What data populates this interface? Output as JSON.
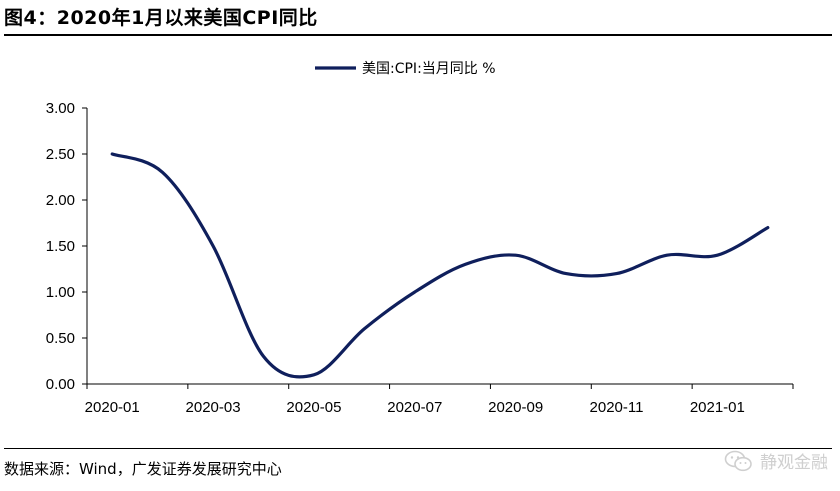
{
  "figure": {
    "title": "图4：2020年1月以来美国CPI同比",
    "source": "数据来源：Wind，广发证券发展研究中心",
    "watermark": "静观金融",
    "watermark_icon": "wechat-icon"
  },
  "chart_data": {
    "type": "line",
    "title": "",
    "xlabel": "",
    "ylabel": "",
    "ylim": [
      0,
      3
    ],
    "y_ticks": [
      "0.00",
      "0.50",
      "1.00",
      "1.50",
      "2.00",
      "2.50",
      "3.00"
    ],
    "x_ticks": [
      "2020-01",
      "2020-03",
      "2020-05",
      "2020-07",
      "2020-09",
      "2020-11",
      "2021-01"
    ],
    "grid": false,
    "legend_position": "top-center",
    "series": [
      {
        "name": "美国:CPI:当月同比 %",
        "color": "#0f1f5c",
        "x": [
          "2020-01",
          "2020-02",
          "2020-03",
          "2020-04",
          "2020-05",
          "2020-06",
          "2020-07",
          "2020-08",
          "2020-09",
          "2020-10",
          "2020-11",
          "2020-12",
          "2021-01",
          "2021-02"
        ],
        "values": [
          2.5,
          2.3,
          1.5,
          0.3,
          0.1,
          0.6,
          1.0,
          1.3,
          1.4,
          1.2,
          1.2,
          1.4,
          1.4,
          1.7
        ]
      }
    ]
  }
}
